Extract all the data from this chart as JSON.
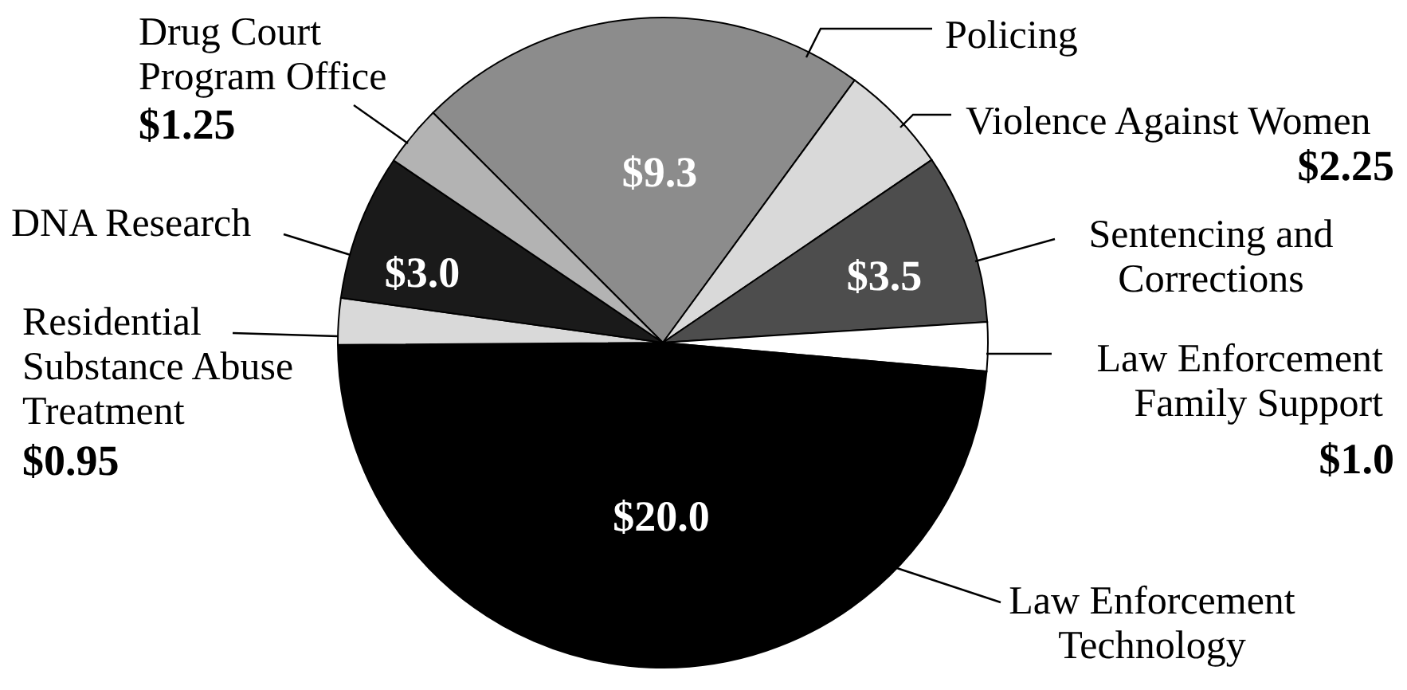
{
  "chart_data": {
    "type": "pie",
    "categories": [
      "Policing",
      "Violence Against Women",
      "Sentencing and Corrections",
      "Law Enforcement Family Support",
      "Law Enforcement Technology",
      "Residential Substance Abuse Treatment",
      "DNA Research",
      "Drug Court Program Office"
    ],
    "values": [
      9.3,
      2.25,
      3.5,
      1.0,
      20.0,
      0.95,
      3.0,
      1.25
    ],
    "colors": [
      "#8c8c8c",
      "#d9d9d9",
      "#4d4d4d",
      "#ffffff",
      "#000000",
      "#d9d9d9",
      "#1a1a1a",
      "#b3b3b3"
    ],
    "value_labels": [
      "$9.3",
      "$2.25",
      "$3.5",
      "$1.0",
      "$20.0",
      "$0.95",
      "$3.0",
      "$1.25"
    ]
  }
}
